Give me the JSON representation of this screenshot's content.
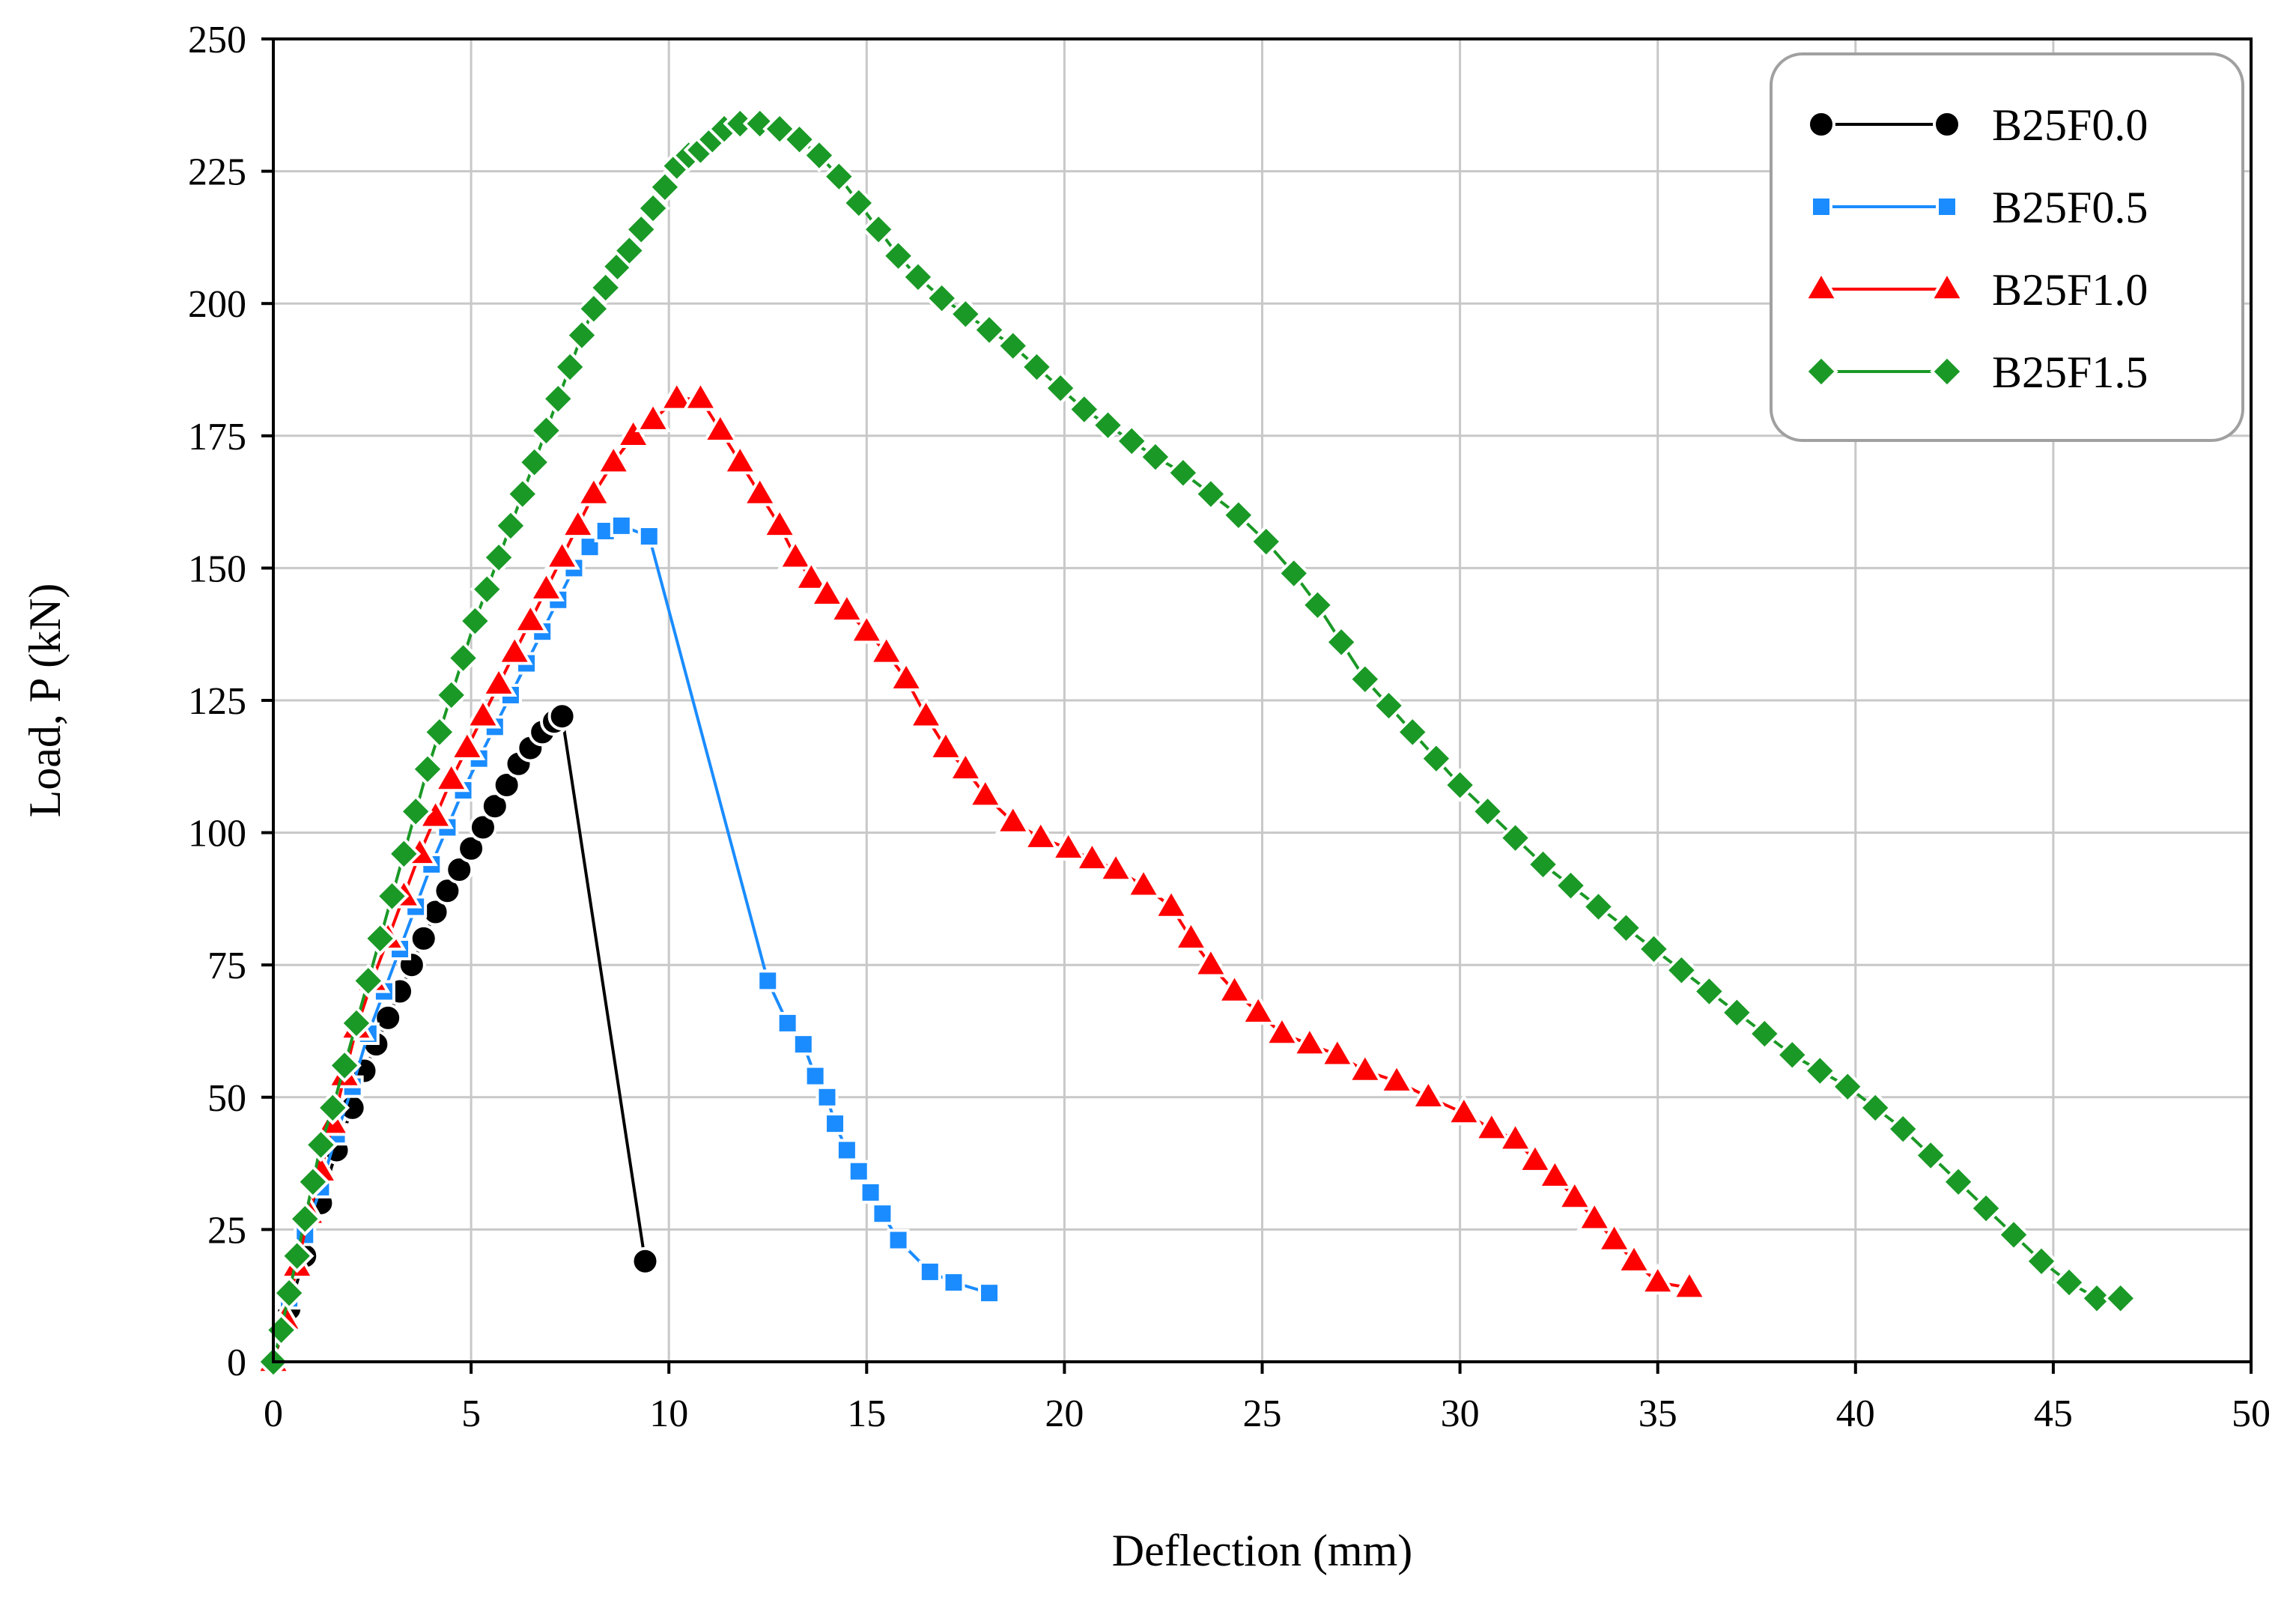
{
  "chart_data": {
    "type": "line",
    "title": "",
    "xlabel": "Deflection (mm)",
    "ylabel": "Load, P (kN)",
    "xlim": [
      0,
      50
    ],
    "ylim": [
      0,
      250
    ],
    "xticks": [
      "0",
      "5",
      "10",
      "15",
      "20",
      "25",
      "30",
      "35",
      "40",
      "45",
      "50"
    ],
    "yticks": [
      "0",
      "25",
      "50",
      "75",
      "100",
      "125",
      "150",
      "175",
      "200",
      "225",
      "250"
    ],
    "grid": true,
    "legend_position": "top-right",
    "series": [
      {
        "name": "B25F0.0",
        "color": "#000000",
        "marker": "circle",
        "x": [
          0,
          0.4,
          0.8,
          1.2,
          1.6,
          2.0,
          2.3,
          2.6,
          2.9,
          3.2,
          3.5,
          3.8,
          4.1,
          4.4,
          4.7,
          5.0,
          5.3,
          5.6,
          5.9,
          6.2,
          6.5,
          6.8,
          7.1,
          7.3,
          9.4
        ],
        "y": [
          0,
          10,
          20,
          30,
          40,
          48,
          55,
          60,
          65,
          70,
          75,
          80,
          85,
          89,
          93,
          97,
          101,
          105,
          109,
          113,
          116,
          119,
          121,
          122,
          19
        ]
      },
      {
        "name": "B25F0.5",
        "color": "#1a8cff",
        "marker": "square",
        "x": [
          0,
          0.4,
          0.8,
          1.2,
          1.6,
          2.0,
          2.4,
          2.8,
          3.2,
          3.6,
          4.0,
          4.4,
          4.8,
          5.2,
          5.6,
          6.0,
          6.4,
          6.8,
          7.2,
          7.6,
          8.0,
          8.4,
          8.8,
          9.5,
          12.5,
          13.0,
          13.4,
          13.7,
          14.0,
          14.2,
          14.5,
          14.8,
          15.1,
          15.4,
          15.8,
          16.6,
          17.2,
          18.1
        ],
        "y": [
          0,
          12,
          24,
          33,
          43,
          52,
          62,
          70,
          78,
          86,
          94,
          101,
          108,
          114,
          120,
          126,
          132,
          138,
          144,
          150,
          154,
          157,
          158,
          156,
          72,
          64,
          60,
          54,
          50,
          45,
          40,
          36,
          32,
          28,
          23,
          17,
          15,
          13
        ]
      },
      {
        "name": "B25F1.0",
        "color": "#ff0000",
        "marker": "triangle",
        "x": [
          0,
          0.3,
          0.6,
          0.9,
          1.2,
          1.5,
          1.8,
          2.1,
          2.5,
          2.9,
          3.3,
          3.7,
          4.1,
          4.5,
          4.9,
          5.3,
          5.7,
          6.1,
          6.5,
          6.9,
          7.3,
          7.7,
          8.1,
          8.6,
          9.1,
          9.6,
          10.2,
          10.8,
          11.3,
          11.8,
          12.3,
          12.8,
          13.2,
          13.6,
          14.0,
          14.5,
          15.0,
          15.5,
          16.0,
          16.5,
          17.0,
          17.5,
          18.0,
          18.7,
          19.4,
          20.1,
          20.7,
          21.3,
          22.0,
          22.7,
          23.2,
          23.7,
          24.3,
          24.9,
          25.5,
          26.2,
          26.9,
          27.6,
          28.4,
          29.2,
          30.1,
          30.8,
          31.4,
          31.9,
          32.4,
          32.9,
          33.4,
          33.9,
          34.4,
          35.0,
          35.8
        ],
        "y": [
          0,
          8,
          18,
          28,
          36,
          45,
          54,
          63,
          72,
          80,
          88,
          96,
          103,
          110,
          116,
          122,
          128,
          134,
          140,
          146,
          152,
          158,
          164,
          170,
          175,
          178,
          182,
          182,
          176,
          170,
          164,
          158,
          152,
          148,
          145,
          142,
          138,
          134,
          129,
          122,
          116,
          112,
          107,
          102,
          99,
          97,
          95,
          93,
          90,
          86,
          80,
          75,
          70,
          66,
          62,
          60,
          58,
          55,
          53,
          50,
          47,
          44,
          42,
          38,
          35,
          31,
          27,
          23,
          19,
          15,
          14
        ]
      },
      {
        "name": "B25F1.5",
        "color": "#1a9926",
        "marker": "diamond",
        "x": [
          0,
          0.2,
          0.4,
          0.6,
          0.8,
          1.0,
          1.2,
          1.5,
          1.8,
          2.1,
          2.4,
          2.7,
          3.0,
          3.3,
          3.6,
          3.9,
          4.2,
          4.5,
          4.8,
          5.1,
          5.4,
          5.7,
          6.0,
          6.3,
          6.6,
          6.9,
          7.2,
          7.5,
          7.8,
          8.1,
          8.4,
          8.7,
          9.0,
          9.3,
          9.6,
          9.9,
          10.2,
          10.5,
          10.8,
          11.1,
          11.4,
          11.8,
          12.3,
          12.8,
          13.3,
          13.8,
          14.3,
          14.8,
          15.3,
          15.8,
          16.3,
          16.9,
          17.5,
          18.1,
          18.7,
          19.3,
          19.9,
          20.5,
          21.1,
          21.7,
          22.3,
          23.0,
          23.7,
          24.4,
          25.1,
          25.8,
          26.4,
          27.0,
          27.6,
          28.2,
          28.8,
          29.4,
          30.0,
          30.7,
          31.4,
          32.1,
          32.8,
          33.5,
          34.2,
          34.9,
          35.6,
          36.3,
          37.0,
          37.7,
          38.4,
          39.1,
          39.8,
          40.5,
          41.2,
          41.9,
          42.6,
          43.3,
          44.0,
          44.7,
          45.4,
          46.1,
          46.7
        ],
        "y": [
          0,
          6,
          13,
          20,
          27,
          34,
          41,
          48,
          56,
          64,
          72,
          80,
          88,
          96,
          104,
          112,
          119,
          126,
          133,
          140,
          146,
          152,
          158,
          164,
          170,
          176,
          182,
          188,
          194,
          199,
          203,
          207,
          210,
          214,
          218,
          222,
          226,
          228,
          229,
          231,
          233,
          234,
          234,
          233,
          231,
          228,
          224,
          219,
          214,
          209,
          205,
          201,
          198,
          195,
          192,
          188,
          184,
          180,
          177,
          174,
          171,
          168,
          164,
          160,
          155,
          149,
          143,
          136,
          129,
          124,
          119,
          114,
          109,
          104,
          99,
          94,
          90,
          86,
          82,
          78,
          74,
          70,
          66,
          62,
          58,
          55,
          52,
          48,
          44,
          39,
          34,
          29,
          24,
          19,
          15,
          12,
          12
        ]
      }
    ]
  }
}
